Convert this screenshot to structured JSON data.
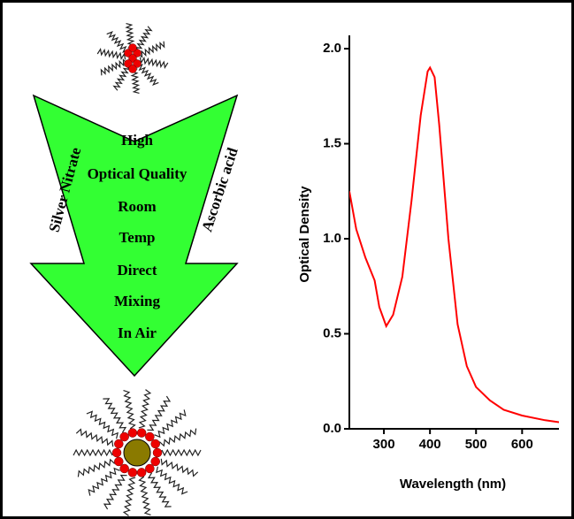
{
  "diagram": {
    "arrow_text": [
      "High",
      "Optical Quality",
      "Room",
      "Temp",
      "Direct",
      "Mixing",
      "In Air"
    ],
    "left_label": "Silver Nitrate",
    "right_label": "Ascorbic acid"
  },
  "chart_data": {
    "type": "line",
    "x_label": "Wavelength (nm)",
    "y_label": "Optical Density",
    "x": [
      225,
      240,
      260,
      280,
      290,
      305,
      320,
      340,
      360,
      380,
      395,
      400,
      410,
      420,
      440,
      460,
      480,
      500,
      530,
      560,
      600,
      650,
      680
    ],
    "series": [
      {
        "color": "#ff0000",
        "values": [
          1.25,
          1.05,
          0.9,
          0.78,
          0.64,
          0.54,
          0.6,
          0.8,
          1.2,
          1.65,
          1.88,
          1.9,
          1.85,
          1.6,
          1.0,
          0.55,
          0.33,
          0.22,
          0.15,
          0.1,
          0.07,
          0.045,
          0.035
        ]
      }
    ],
    "xlim": [
      225,
      680
    ],
    "ylim": [
      0,
      2.07
    ],
    "xticks": [
      300,
      400,
      500,
      600
    ],
    "yticks": [
      {
        "value": 0,
        "label": "0.0"
      },
      0.5,
      {
        "value": 1,
        "label": "1.0"
      },
      1.5,
      {
        "value": 2,
        "label": "2.0"
      }
    ]
  }
}
